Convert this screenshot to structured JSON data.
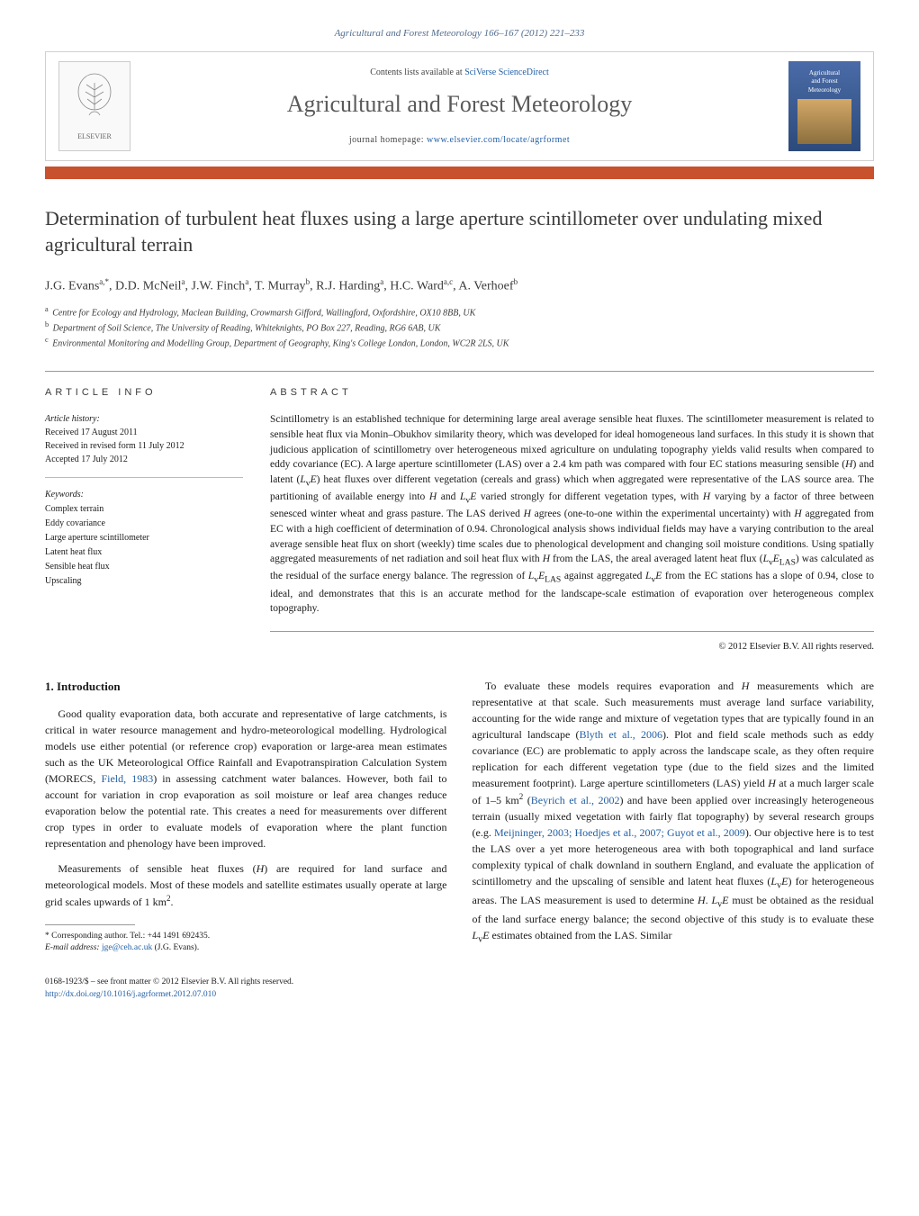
{
  "top_info": "Agricultural and Forest Meteorology 166–167 (2012) 221–233",
  "header": {
    "contents_prefix": "Contents lists available at ",
    "contents_link_text": "SciVerse ScienceDirect",
    "journal_title": "Agricultural and Forest Meteorology",
    "homepage_prefix": "journal homepage: ",
    "homepage_url": "www.elsevier.com/locate/agrformet",
    "publisher_logo_text": "ELSEVIER",
    "cover_text_top": "Agricultural",
    "cover_text_mid": "and Forest",
    "cover_text_bot": "Meteorology"
  },
  "article": {
    "title": "Determination of turbulent heat fluxes using a large aperture scintillometer over undulating mixed agricultural terrain",
    "authors_html": "J.G. Evans<sup>a,*</sup>, D.D. McNeil<sup>a</sup>, J.W. Finch<sup>a</sup>, T. Murray<sup>b</sup>, R.J. Harding<sup>a</sup>, H.C. Ward<sup>a,c</sup>, A. Verhoef<sup>b</sup>",
    "affiliations": [
      {
        "sup": "a",
        "text": "Centre for Ecology and Hydrology, Maclean Building, Crowmarsh Gifford, Wallingford, Oxfordshire, OX10 8BB, UK"
      },
      {
        "sup": "b",
        "text": "Department of Soil Science, The University of Reading, Whiteknights, PO Box 227, Reading, RG6 6AB, UK"
      },
      {
        "sup": "c",
        "text": "Environmental Monitoring and Modelling Group, Department of Geography, King's College London, London, WC2R 2LS, UK"
      }
    ]
  },
  "info": {
    "heading": "ARTICLE INFO",
    "history_label": "Article history:",
    "history": [
      "Received 17 August 2011",
      "Received in revised form 11 July 2012",
      "Accepted 17 July 2012"
    ],
    "keywords_label": "Keywords:",
    "keywords": [
      "Complex terrain",
      "Eddy covariance",
      "Large aperture scintillometer",
      "Latent heat flux",
      "Sensible heat flux",
      "Upscaling"
    ]
  },
  "abstract": {
    "heading": "ABSTRACT",
    "text": "Scintillometry is an established technique for determining large areal average sensible heat fluxes. The scintillometer measurement is related to sensible heat flux via Monin–Obukhov similarity theory, which was developed for ideal homogeneous land surfaces. In this study it is shown that judicious application of scintillometry over heterogeneous mixed agriculture on undulating topography yields valid results when compared to eddy covariance (EC). A large aperture scintillometer (LAS) over a 2.4 km path was compared with four EC stations measuring sensible (H) and latent (LvE) heat fluxes over different vegetation (cereals and grass) which when aggregated were representative of the LAS source area. The partitioning of available energy into H and LvE varied strongly for different vegetation types, with H varying by a factor of three between senesced winter wheat and grass pasture. The LAS derived H agrees (one-to-one within the experimental uncertainty) with H aggregated from EC with a high coefficient of determination of 0.94. Chronological analysis shows individual fields may have a varying contribution to the areal average sensible heat flux on short (weekly) time scales due to phenological development and changing soil moisture conditions. Using spatially aggregated measurements of net radiation and soil heat flux with H from the LAS, the areal averaged latent heat flux (LvELAS) was calculated as the residual of the surface energy balance. The regression of LvELAS against aggregated LvE from the EC stations has a slope of 0.94, close to ideal, and demonstrates that this is an accurate method for the landscape-scale estimation of evaporation over heterogeneous complex topography.",
    "copyright": "© 2012 Elsevier B.V. All rights reserved."
  },
  "body": {
    "section_heading": "1. Introduction",
    "p1": "Good quality evaporation data, both accurate and representative of large catchments, is critical in water resource management and hydro-meteorological modelling. Hydrological models use either potential (or reference crop) evaporation or large-area mean estimates such as the UK Meteorological Office Rainfall and Evapotranspiration Calculation System (MORECS, Field, 1983) in assessing catchment water balances. However, both fail to account for variation in crop evaporation as soil moisture or leaf area changes reduce evaporation below the potential rate. This creates a need for measurements over different crop types in order to evaluate models of evaporation where the plant function representation and phenology have been improved.",
    "p2": "Measurements of sensible heat fluxes (H) are required for land surface and meteorological models. Most of these models and satellite estimates usually operate at large grid scales upwards of 1 km2.",
    "p3": "To evaluate these models requires evaporation and H measurements which are representative at that scale. Such measurements must average land surface variability, accounting for the wide range and mixture of vegetation types that are typically found in an agricultural landscape (Blyth et al., 2006). Plot and field scale methods such as eddy covariance (EC) are problematic to apply across the landscape scale, as they often require replication for each different vegetation type (due to the field sizes and the limited measurement footprint). Large aperture scintillometers (LAS) yield H at a much larger scale of 1–5 km2 (Beyrich et al., 2002) and have been applied over increasingly heterogeneous terrain (usually mixed vegetation with fairly flat topography) by several research groups (e.g. Meijninger, 2003; Hoedjes et al., 2007; Guyot et al., 2009). Our objective here is to test the LAS over a yet more heterogeneous area with both topographical and land surface complexity typical of chalk downland in southern England, and evaluate the application of scintillometry and the upscaling of sensible and latent heat fluxes (LvE) for heterogeneous areas. The LAS measurement is used to determine H. LvE must be obtained as the residual of the land surface energy balance; the second objective of this study is to evaluate these LvE estimates obtained from the LAS. Similar"
  },
  "footnote": {
    "corr_label": "* Corresponding author. Tel.: +44 1491 692435.",
    "email_label": "E-mail address: ",
    "email": "jge@ceh.ac.uk",
    "email_suffix": " (J.G. Evans)."
  },
  "bottom": {
    "issn_line": "0168-1923/$ – see front matter © 2012 Elsevier B.V. All rights reserved.",
    "doi_url": "http://dx.doi.org/10.1016/j.agrformet.2012.07.010"
  },
  "colors": {
    "accent_bar": "#c8512e",
    "link": "#2360a5",
    "border": "#999999"
  }
}
